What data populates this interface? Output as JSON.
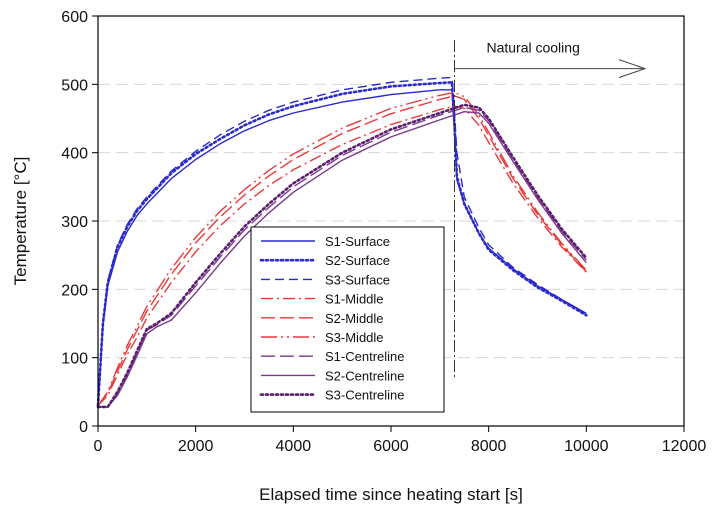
{
  "chart_data": {
    "type": "line",
    "title": "",
    "xlabel": "Elapsed time since heating start [s]",
    "ylabel": "Temperature [°C]",
    "xlim": [
      0,
      12000
    ],
    "ylim": [
      0,
      600
    ],
    "xticks": [
      0,
      2000,
      4000,
      6000,
      8000,
      10000,
      12000
    ],
    "yticks": [
      0,
      100,
      200,
      300,
      400,
      500,
      600
    ],
    "grid": "horizontal-dashed",
    "legend_position": "lower-center",
    "annotations": [
      {
        "text": "Natural cooling",
        "arrow_from_x": 7300,
        "arrow_to_x": 11200,
        "y": 523,
        "marker_line_x": 7300
      }
    ],
    "series": [
      {
        "name": "S1-Surface",
        "color": "#2a2acb",
        "dash": "solid",
        "x": [
          0,
          100,
          200,
          400,
          600,
          800,
          1000,
          1500,
          2000,
          2500,
          3000,
          3500,
          4000,
          5000,
          6000,
          7000,
          7250,
          7300,
          7350,
          7500,
          7800,
          8000,
          8500,
          9000,
          9500,
          10000
        ],
        "y": [
          30,
          145,
          205,
          255,
          285,
          308,
          325,
          362,
          390,
          413,
          432,
          447,
          458,
          474,
          485,
          492,
          492,
          430,
          360,
          325,
          282,
          260,
          230,
          205,
          185,
          165
        ]
      },
      {
        "name": "S2-Surface",
        "color": "#2a2acb",
        "dash": "dotted",
        "x": [
          0,
          100,
          200,
          400,
          600,
          800,
          1000,
          1500,
          2000,
          2500,
          3000,
          3500,
          4000,
          5000,
          6000,
          7000,
          7250,
          7300,
          7350,
          7500,
          7800,
          8000,
          8500,
          9000,
          9500,
          10000
        ],
        "y": [
          30,
          150,
          210,
          262,
          292,
          315,
          332,
          370,
          398,
          420,
          440,
          456,
          468,
          486,
          497,
          502,
          503,
          440,
          365,
          325,
          282,
          258,
          228,
          203,
          183,
          162
        ]
      },
      {
        "name": "S3-Surface",
        "color": "#2a2acb",
        "dash": "dashed",
        "x": [
          0,
          100,
          200,
          400,
          600,
          800,
          1000,
          1500,
          2000,
          2500,
          3000,
          3500,
          4000,
          5000,
          6000,
          7000,
          7250,
          7300,
          7350,
          7500,
          7800,
          8000,
          8500,
          9000,
          9500,
          10000
        ],
        "y": [
          30,
          150,
          212,
          265,
          295,
          318,
          335,
          373,
          402,
          426,
          446,
          462,
          474,
          492,
          503,
          509,
          510,
          460,
          400,
          335,
          290,
          265,
          232,
          207,
          185,
          163
        ]
      },
      {
        "name": "S1-Middle",
        "color": "#e83a3a",
        "dash": "dashdot",
        "x": [
          0,
          200,
          400,
          600,
          800,
          1000,
          1500,
          2000,
          2500,
          3000,
          3500,
          4000,
          5000,
          6000,
          7000,
          7300,
          7500,
          7800,
          8000,
          8500,
          9000,
          9500,
          10000
        ],
        "y": [
          30,
          45,
          75,
          105,
          130,
          158,
          210,
          255,
          293,
          325,
          352,
          375,
          412,
          441,
          463,
          468,
          465,
          440,
          415,
          355,
          305,
          262,
          225
        ]
      },
      {
        "name": "S2-Middle",
        "color": "#e83a3a",
        "dash": "longdash",
        "x": [
          0,
          200,
          400,
          600,
          800,
          1000,
          1500,
          2000,
          2500,
          3000,
          3500,
          4000,
          5000,
          6000,
          7000,
          7300,
          7500,
          7800,
          8000,
          8500,
          9000,
          9500,
          10000
        ],
        "y": [
          30,
          48,
          80,
          112,
          140,
          168,
          222,
          268,
          306,
          338,
          366,
          390,
          428,
          457,
          478,
          483,
          478,
          450,
          425,
          362,
          310,
          265,
          226
        ]
      },
      {
        "name": "S3-Middle",
        "color": "#e83a3a",
        "dash": "dashdotlong",
        "x": [
          0,
          200,
          400,
          600,
          800,
          1000,
          1500,
          2000,
          2500,
          3000,
          3500,
          4000,
          5000,
          6000,
          7000,
          7300,
          7500,
          7800,
          8000,
          8500,
          9000,
          9500,
          10000
        ],
        "y": [
          30,
          50,
          85,
          118,
          146,
          175,
          230,
          276,
          314,
          346,
          374,
          398,
          436,
          465,
          484,
          488,
          482,
          455,
          430,
          366,
          313,
          267,
          228
        ]
      },
      {
        "name": "S1-Centreline",
        "color": "#7b3a8e",
        "dash": "longdash",
        "x": [
          0,
          200,
          400,
          600,
          800,
          1000,
          1200,
          1500,
          2000,
          2500,
          3000,
          3500,
          4000,
          5000,
          6000,
          7000,
          7500,
          7800,
          8000,
          8500,
          9000,
          9500,
          10000
        ],
        "y": [
          28,
          28,
          48,
          75,
          108,
          140,
          148,
          162,
          205,
          247,
          287,
          320,
          350,
          396,
          430,
          455,
          466,
          462,
          447,
          390,
          335,
          285,
          243
        ]
      },
      {
        "name": "S2-Centreline",
        "color": "#7b3a8e",
        "dash": "solid",
        "x": [
          0,
          200,
          400,
          600,
          800,
          1000,
          1200,
          1500,
          2000,
          2500,
          3000,
          3500,
          4000,
          5000,
          6000,
          7000,
          7500,
          7800,
          8000,
          8500,
          9000,
          9500,
          10000
        ],
        "y": [
          28,
          28,
          45,
          72,
          103,
          135,
          145,
          155,
          195,
          238,
          278,
          312,
          342,
          389,
          423,
          448,
          460,
          458,
          443,
          387,
          332,
          282,
          239
        ]
      },
      {
        "name": "S3-Centreline",
        "color": "#5a1f6e",
        "dash": "dotted",
        "x": [
          0,
          200,
          400,
          600,
          800,
          1000,
          1200,
          1500,
          2000,
          2500,
          3000,
          3500,
          4000,
          5000,
          6000,
          7000,
          7500,
          7800,
          8000,
          8500,
          9000,
          9500,
          10000
        ],
        "y": [
          28,
          28,
          50,
          78,
          110,
          142,
          150,
          165,
          210,
          252,
          292,
          325,
          355,
          400,
          434,
          458,
          470,
          466,
          450,
          393,
          338,
          288,
          246
        ]
      }
    ]
  }
}
